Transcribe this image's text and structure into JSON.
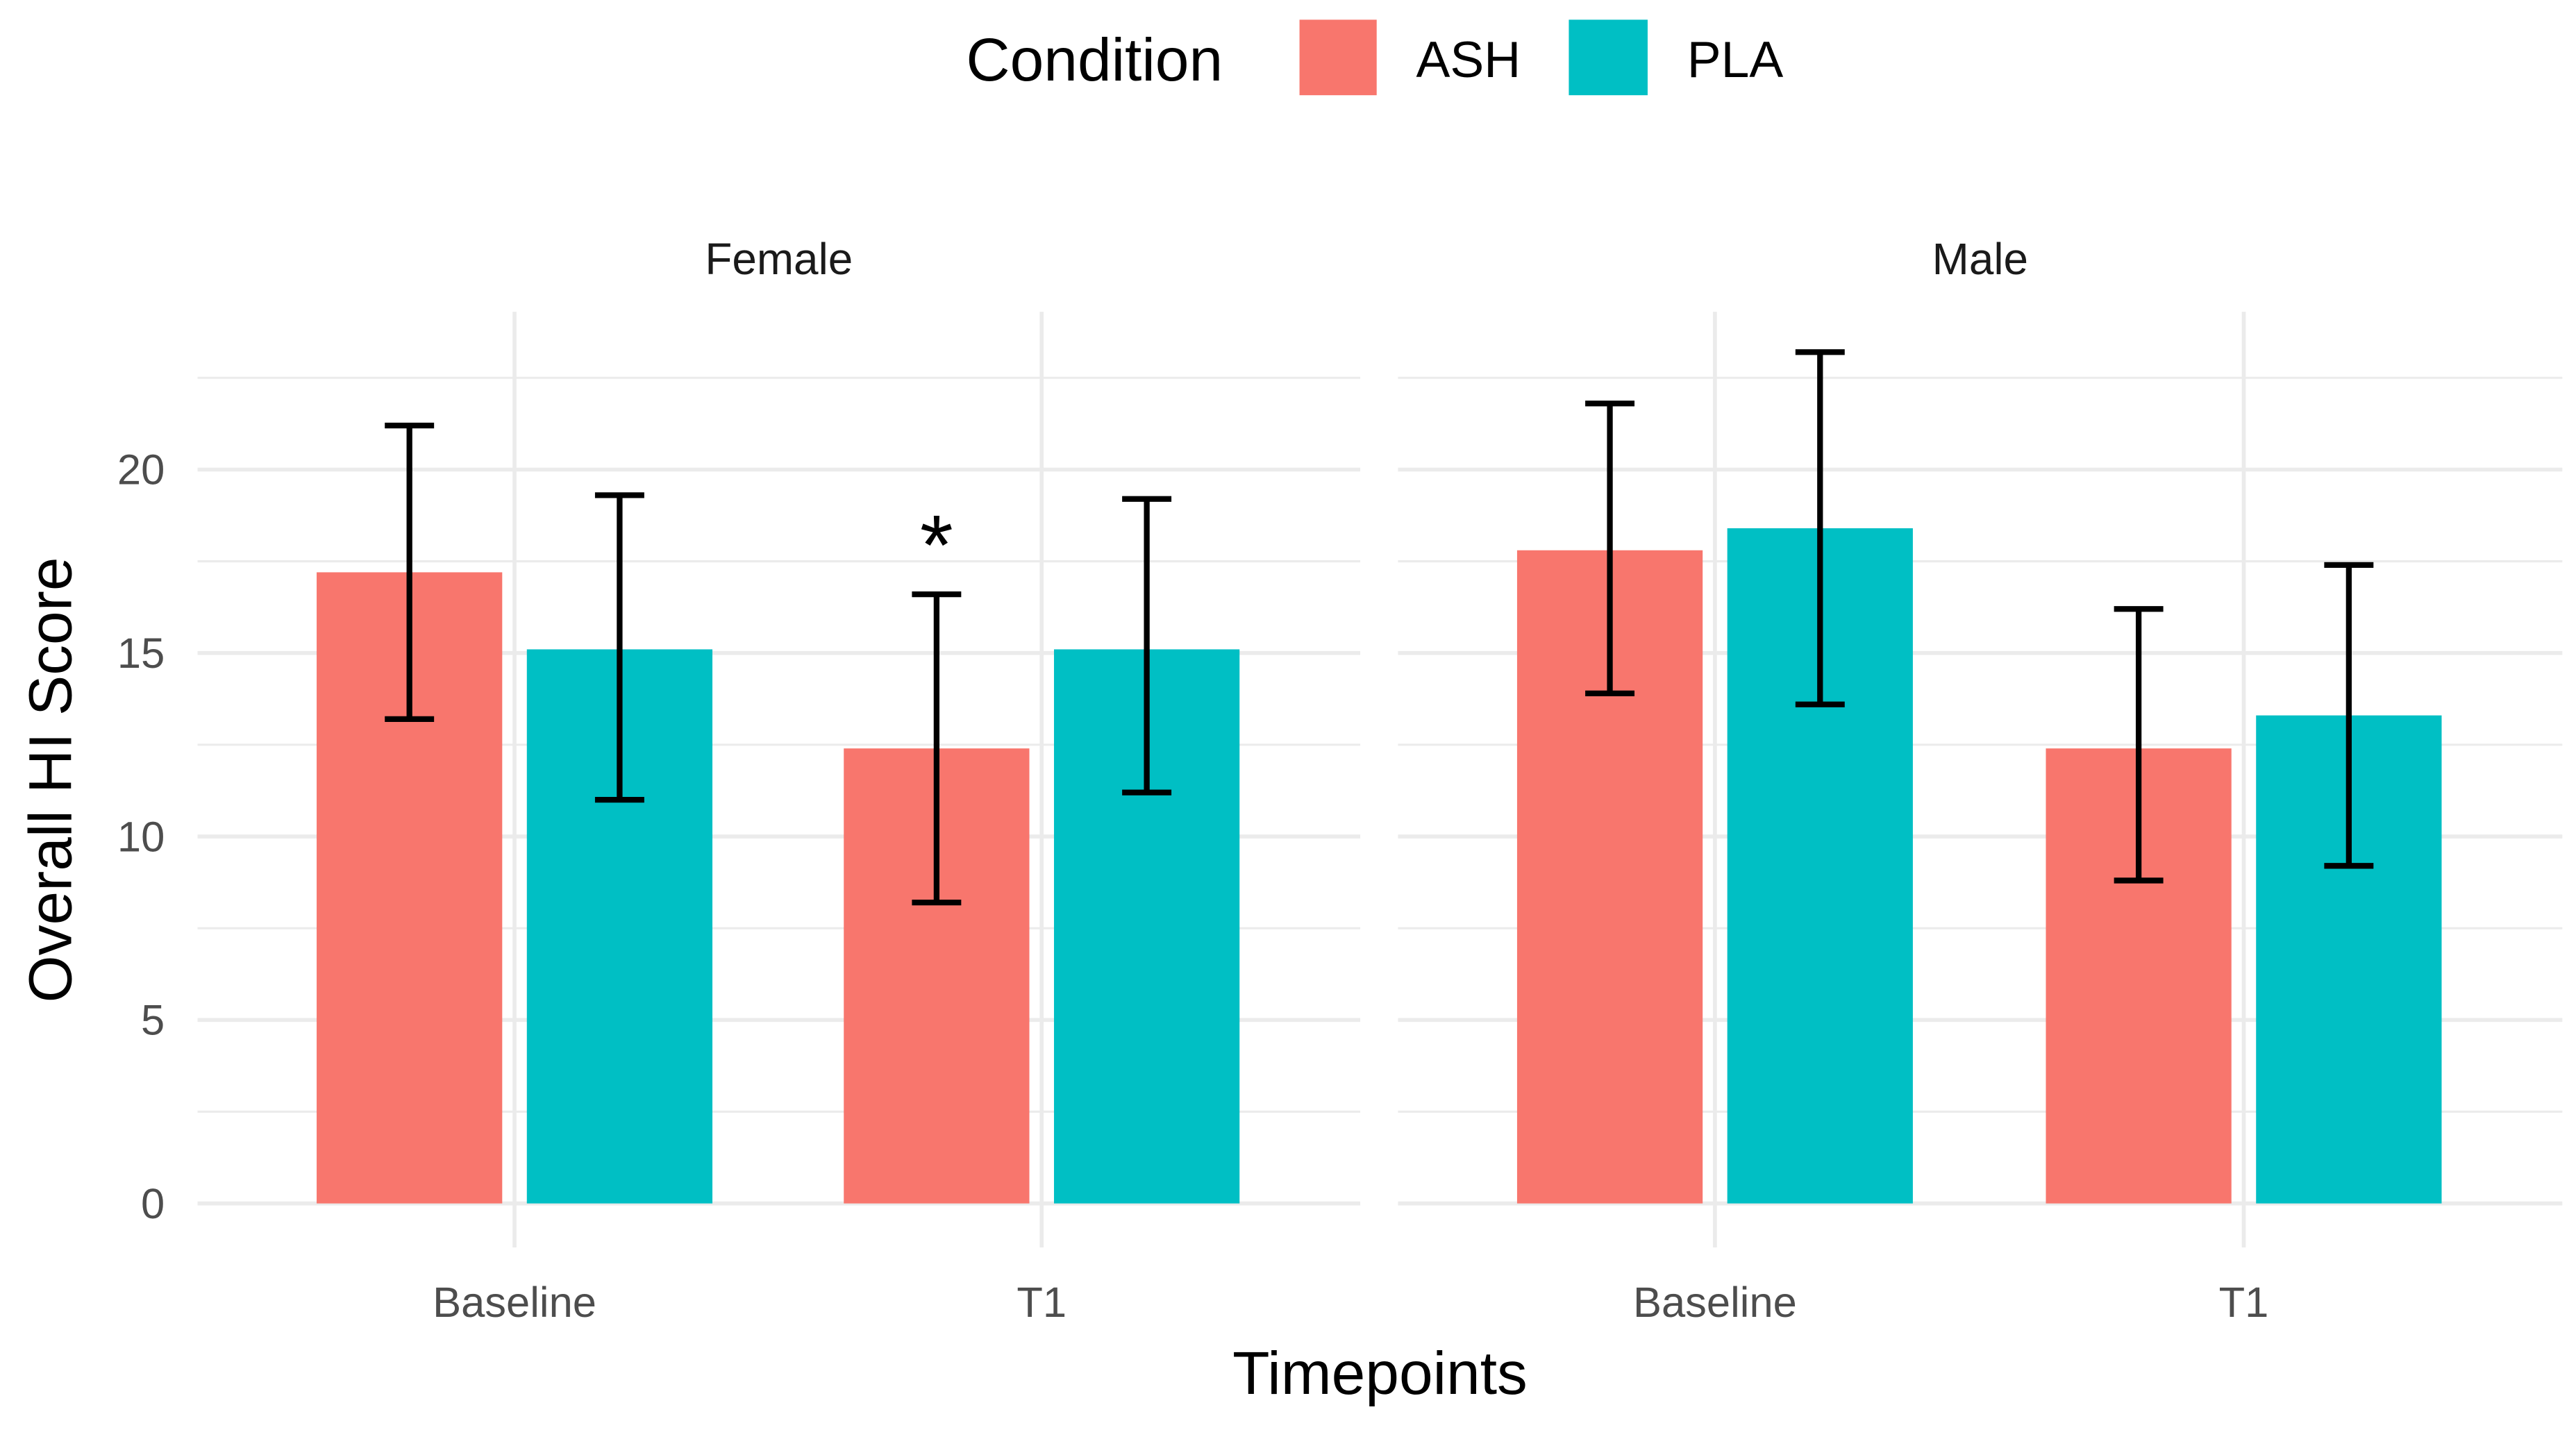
{
  "chart_data": {
    "type": "bar",
    "facets": [
      "Female",
      "Male"
    ],
    "categories": [
      "Baseline",
      "T1"
    ],
    "xlabel": "Timepoints",
    "ylabel": "Overall HI Score",
    "ylim": [
      -1.2,
      24.3
    ],
    "yticks": [
      0,
      5,
      10,
      15,
      20
    ],
    "grid": true,
    "legend": {
      "title": "Condition",
      "placement": "top"
    },
    "series": [
      {
        "name": "ASH",
        "color": "#F8766D",
        "values": {
          "Female": [
            17.2,
            12.4
          ],
          "Male": [
            17.8,
            12.4
          ]
        },
        "error_low": {
          "Female": [
            13.2,
            8.2
          ],
          "Male": [
            13.9,
            8.8
          ]
        },
        "error_high": {
          "Female": [
            21.2,
            16.6
          ],
          "Male": [
            21.8,
            16.2
          ]
        }
      },
      {
        "name": "PLA",
        "color": "#00BFC4",
        "values": {
          "Female": [
            15.1,
            15.1
          ],
          "Male": [
            18.4,
            13.3
          ]
        },
        "error_low": {
          "Female": [
            11.0,
            11.2
          ],
          "Male": [
            13.6,
            9.2
          ]
        },
        "error_high": {
          "Female": [
            19.3,
            19.2
          ],
          "Male": [
            23.2,
            17.4
          ]
        }
      }
    ],
    "annotations": [
      {
        "facet": "Female",
        "category": "T1",
        "series": "ASH",
        "text": "*"
      }
    ]
  }
}
